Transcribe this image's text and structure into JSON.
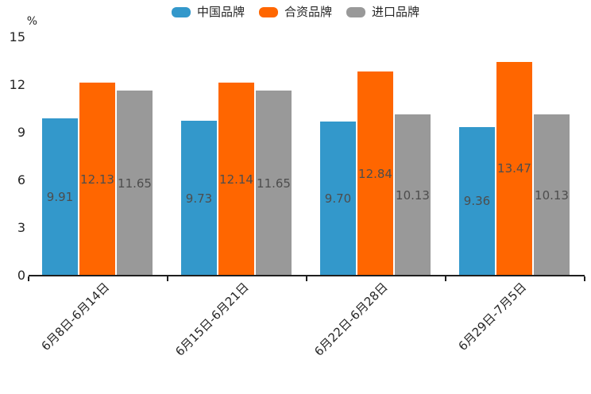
{
  "chart_data": {
    "type": "bar",
    "title": "",
    "unit": "%",
    "categories": [
      "6月8日-6月14日",
      "6月15日-6月21日",
      "6月22日-6月28日",
      "6月29日-7月5日"
    ],
    "series": [
      {
        "name": "中国品牌",
        "color": "#3398CB",
        "values": [
          9.91,
          9.73,
          9.7,
          9.36
        ]
      },
      {
        "name": "合资品牌",
        "color": "#FF6600",
        "values": [
          12.13,
          12.14,
          12.84,
          13.47
        ]
      },
      {
        "name": "进口品牌",
        "color": "#999999",
        "values": [
          11.65,
          11.65,
          10.13,
          10.13
        ]
      }
    ],
    "ylim": [
      0,
      15
    ],
    "y_ticks": [
      0,
      3,
      6,
      9,
      12,
      15
    ],
    "value_labels_visible": true,
    "legend_position": "top",
    "grid": false
  },
  "colors": {
    "axis": "#1F1F1F",
    "tick_label": "#262626",
    "bar_label": "#4D4D4D",
    "background": "#FFFFFF"
  }
}
